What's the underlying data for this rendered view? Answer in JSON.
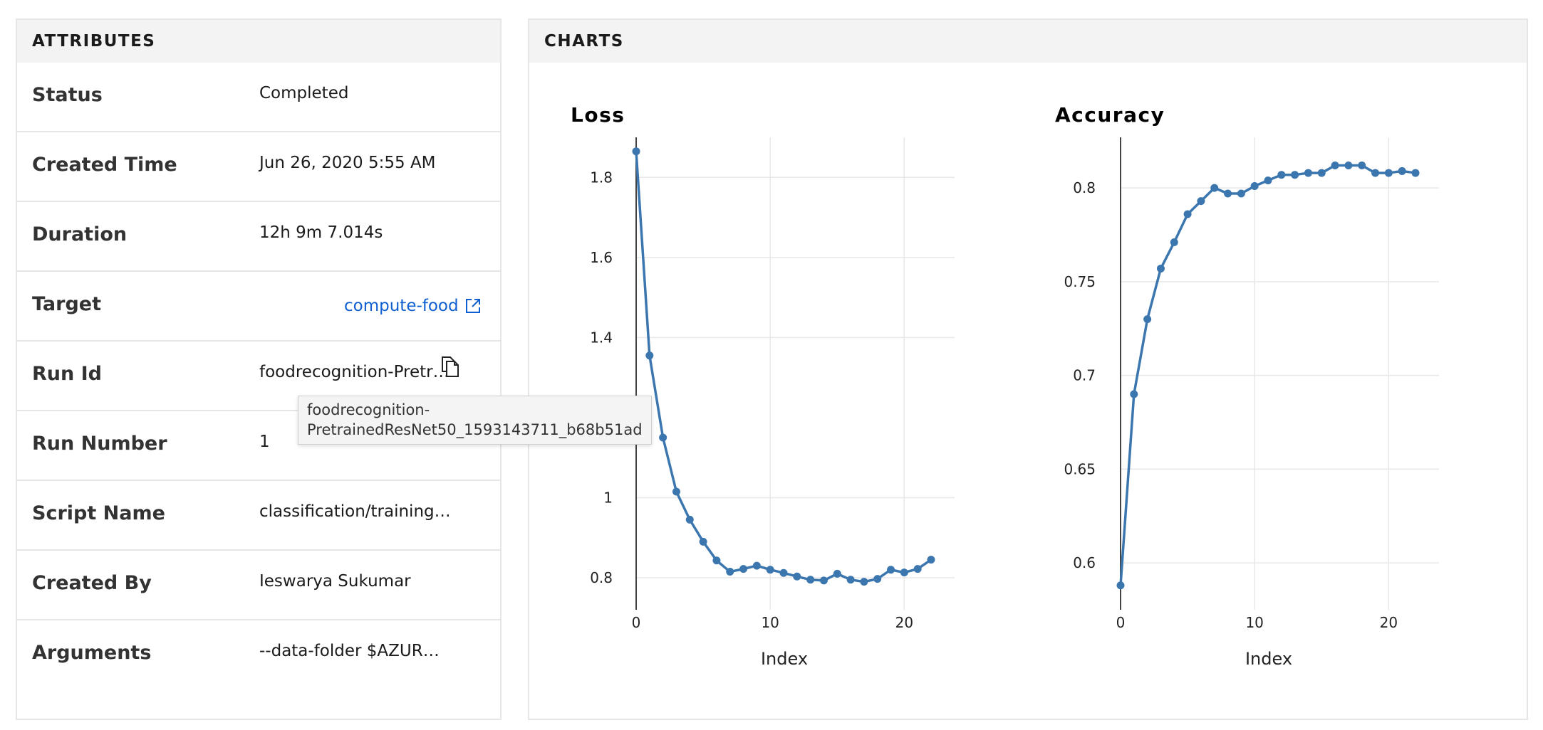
{
  "attributes": {
    "header": "ATTRIBUTES",
    "rows": [
      {
        "label": "Status",
        "value": "Completed"
      },
      {
        "label": "Created Time",
        "value": "Jun 26, 2020 5:55 AM"
      },
      {
        "label": "Duration",
        "value": "12h 9m 7.014s"
      },
      {
        "label": "Target",
        "value": "compute-food"
      },
      {
        "label": "Run Id",
        "value": "foodrecognition-Pretr…"
      },
      {
        "label": "Run Number",
        "value": "1"
      },
      {
        "label": "Script Name",
        "value": "classification/training…"
      },
      {
        "label": "Created By",
        "value": "Ieswarya Sukumar"
      },
      {
        "label": "Arguments",
        "value": "--data-folder $AZUR…"
      }
    ],
    "run_id_tooltip": "foodrecognition-\nPretrainedResNet50_1593143711_b68b51ad"
  },
  "charts": {
    "header": "CHARTS",
    "line_color": "#3b76af"
  },
  "chart_data": [
    {
      "type": "line",
      "title": "Loss",
      "xlabel": "Index",
      "ylabel": "",
      "x": [
        0,
        1,
        2,
        3,
        4,
        5,
        6,
        7,
        8,
        9,
        10,
        11,
        12,
        13,
        14,
        15,
        16,
        17,
        18,
        19,
        20,
        21,
        22
      ],
      "series": [
        {
          "values": [
            1.865,
            1.355,
            1.15,
            1.015,
            0.945,
            0.89,
            0.843,
            0.815,
            0.822,
            0.83,
            0.82,
            0.812,
            0.803,
            0.795,
            0.793,
            0.81,
            0.795,
            0.79,
            0.797,
            0.82,
            0.813,
            0.822,
            0.845
          ]
        }
      ],
      "xlim": [
        0,
        22
      ],
      "ylim": [
        0.72,
        1.9
      ],
      "xticks": [
        0,
        10,
        20
      ],
      "yticks": [
        0.8,
        1,
        1.4,
        1.6,
        1.8
      ],
      "grid": true,
      "legend": "none"
    },
    {
      "type": "line",
      "title": "Accuracy",
      "xlabel": "Index",
      "ylabel": "",
      "x": [
        0,
        1,
        2,
        3,
        4,
        5,
        6,
        7,
        8,
        9,
        10,
        11,
        12,
        13,
        14,
        15,
        16,
        17,
        18,
        19,
        20,
        21,
        22
      ],
      "series": [
        {
          "values": [
            0.588,
            0.69,
            0.73,
            0.757,
            0.771,
            0.786,
            0.793,
            0.8,
            0.797,
            0.797,
            0.801,
            0.804,
            0.807,
            0.807,
            0.808,
            0.808,
            0.812,
            0.812,
            0.812,
            0.808,
            0.808,
            0.809,
            0.808
          ]
        }
      ],
      "xlim": [
        0,
        22
      ],
      "ylim": [
        0.575,
        0.827
      ],
      "xticks": [
        0,
        10,
        20
      ],
      "yticks": [
        0.6,
        0.65,
        0.7,
        0.75,
        0.8
      ],
      "grid": true,
      "legend": "none"
    }
  ]
}
